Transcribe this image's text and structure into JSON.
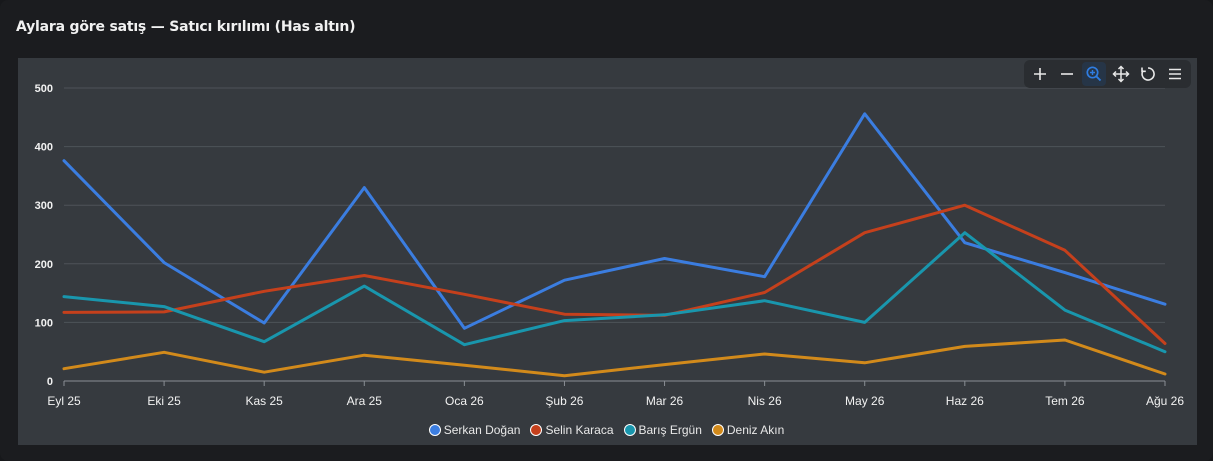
{
  "title": "Aylara göre satış — Satıcı kırılımı (Has altın)",
  "toolbar": {
    "icons": [
      "zoom-in-icon",
      "zoom-out-icon",
      "selection-zoom-icon",
      "pan-icon",
      "reset-icon",
      "menu-icon"
    ],
    "active": "selection-zoom-icon",
    "active_color": "#2f7de1"
  },
  "chart_data": {
    "type": "line",
    "title": "Aylara göre satış — Satıcı kırılımı (Has altın)",
    "x": [
      "Eyl 25",
      "Eki 25",
      "Kas 25",
      "Ara 25",
      "Oca 26",
      "Şub 26",
      "Mar 26",
      "Nis 26",
      "May 26",
      "Haz 26",
      "Tem 26",
      "Ağu 26"
    ],
    "ylim": [
      0,
      500
    ],
    "yticks": [
      0,
      100,
      200,
      300,
      400,
      500
    ],
    "grid": true,
    "legend_position": "bottom",
    "series": [
      {
        "name": "Serkan Doğan",
        "color": "#3b7de0",
        "values": [
          376,
          202,
          99,
          330,
          90,
          172,
          209,
          178,
          456,
          236,
          185,
          131
        ]
      },
      {
        "name": "Selin Karaca",
        "color": "#c5401c",
        "values": [
          117,
          118,
          153,
          180,
          148,
          114,
          112,
          151,
          253,
          300,
          223,
          64
        ]
      },
      {
        "name": "Barış Ergün",
        "color": "#1996ad",
        "values": [
          144,
          127,
          67,
          162,
          62,
          103,
          113,
          137,
          100,
          253,
          121,
          50
        ]
      },
      {
        "name": "Deniz Akın",
        "color": "#d28a1b",
        "values": [
          21,
          49,
          15,
          44,
          27,
          9,
          28,
          46,
          31,
          59,
          70,
          12
        ]
      }
    ]
  }
}
